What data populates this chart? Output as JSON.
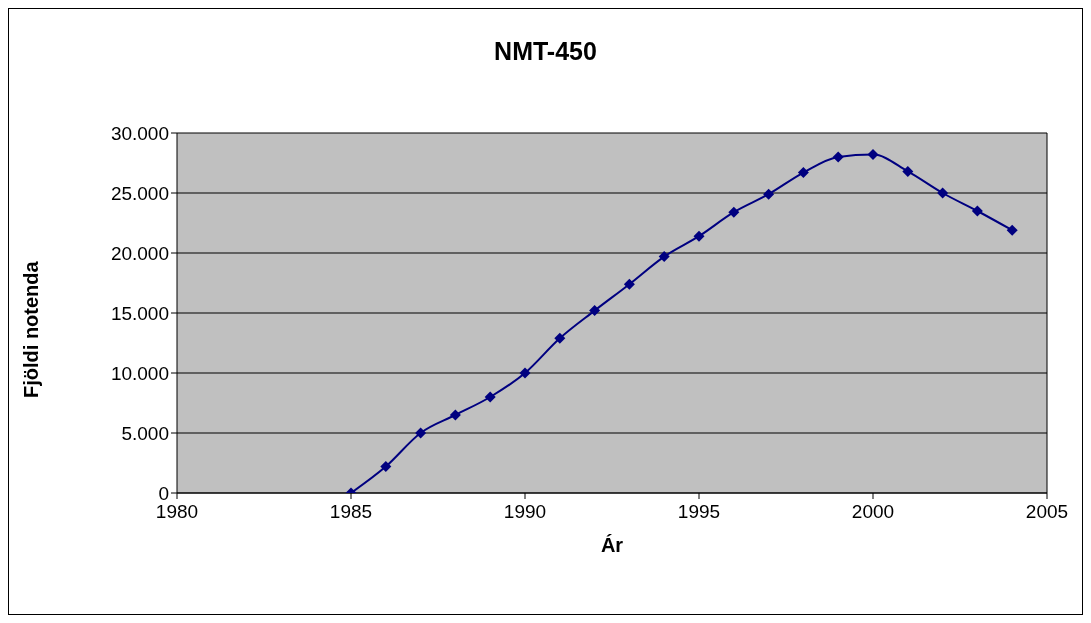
{
  "chart_data": {
    "type": "line",
    "title": "NMT-450",
    "xlabel": "Ár",
    "ylabel": "Fjöldi notenda",
    "x": [
      1985,
      1986,
      1987,
      1988,
      1989,
      1990,
      1991,
      1992,
      1993,
      1994,
      1995,
      1996,
      1997,
      1998,
      1999,
      2000,
      2001,
      2002,
      2003,
      2004
    ],
    "series": [
      {
        "color": "#000080",
        "values": [
          0,
          2200,
          5000,
          6500,
          8000,
          10000,
          12900,
          15200,
          17400,
          19700,
          21400,
          23400,
          24900,
          26700,
          28000,
          28200,
          26800,
          25000,
          23500,
          21900
        ]
      }
    ],
    "xlim": [
      1980,
      2005
    ],
    "xticks": [
      1980,
      1985,
      1990,
      1995,
      2000,
      2005
    ],
    "ylim": [
      0,
      30000
    ],
    "yticks": [
      {
        "value": 0,
        "label": "0"
      },
      {
        "value": 5000,
        "label": "5.000"
      },
      {
        "value": 10000,
        "label": "10.000"
      },
      {
        "value": 15000,
        "label": "15.000"
      },
      {
        "value": 20000,
        "label": "20.000"
      },
      {
        "value": 25000,
        "label": "25.000"
      },
      {
        "value": 30000,
        "label": "30.000"
      }
    ],
    "grid": "y",
    "legend": false,
    "marker": "diamond",
    "line_style": "solid"
  }
}
